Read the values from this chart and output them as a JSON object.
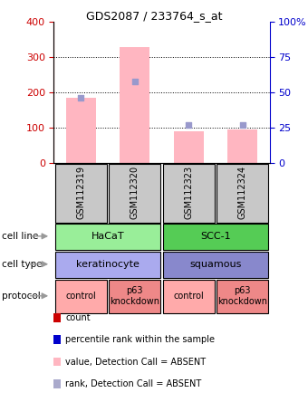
{
  "title": "GDS2087 / 233764_s_at",
  "samples": [
    "GSM112319",
    "GSM112320",
    "GSM112323",
    "GSM112324"
  ],
  "bar_values": [
    185,
    330,
    90,
    95
  ],
  "rank_values": [
    46,
    58,
    27,
    27
  ],
  "ylim_left": [
    0,
    400
  ],
  "ylim_right": [
    0,
    100
  ],
  "yticks_left": [
    0,
    100,
    200,
    300,
    400
  ],
  "yticks_right": [
    0,
    25,
    50,
    75,
    100
  ],
  "bar_color": "#FFB6C1",
  "rank_color": "#9999CC",
  "sample_box_color": "#C8C8C8",
  "left_axis_color": "#CC0000",
  "right_axis_color": "#0000CC",
  "cell_line_groups": [
    {
      "text": "HaCaT",
      "start": 0,
      "end": 2,
      "color": "#99EE99"
    },
    {
      "text": "SCC-1",
      "start": 2,
      "end": 4,
      "color": "#55CC55"
    }
  ],
  "cell_type_groups": [
    {
      "text": "keratinocyte",
      "start": 0,
      "end": 2,
      "color": "#AAAAEE"
    },
    {
      "text": "squamous",
      "start": 2,
      "end": 4,
      "color": "#8888CC"
    }
  ],
  "protocol_groups": [
    {
      "text": "control",
      "start": 0,
      "end": 1,
      "color": "#FFAAAA"
    },
    {
      "text": "p63\nknockdown",
      "start": 1,
      "end": 2,
      "color": "#EE8888"
    },
    {
      "text": "control",
      "start": 2,
      "end": 3,
      "color": "#FFAAAA"
    },
    {
      "text": "p63\nknockdown",
      "start": 3,
      "end": 4,
      "color": "#EE8888"
    }
  ],
  "legend_colors": [
    "#CC0000",
    "#0000CC",
    "#FFB6C1",
    "#AAAACC"
  ],
  "legend_labels": [
    "count",
    "percentile rank within the sample",
    "value, Detection Call = ABSENT",
    "rank, Detection Call = ABSENT"
  ],
  "row_labels": [
    "cell line",
    "cell type",
    "protocol"
  ],
  "arrow_color": "#999999",
  "figsize": [
    3.4,
    4.44
  ],
  "dpi": 100
}
